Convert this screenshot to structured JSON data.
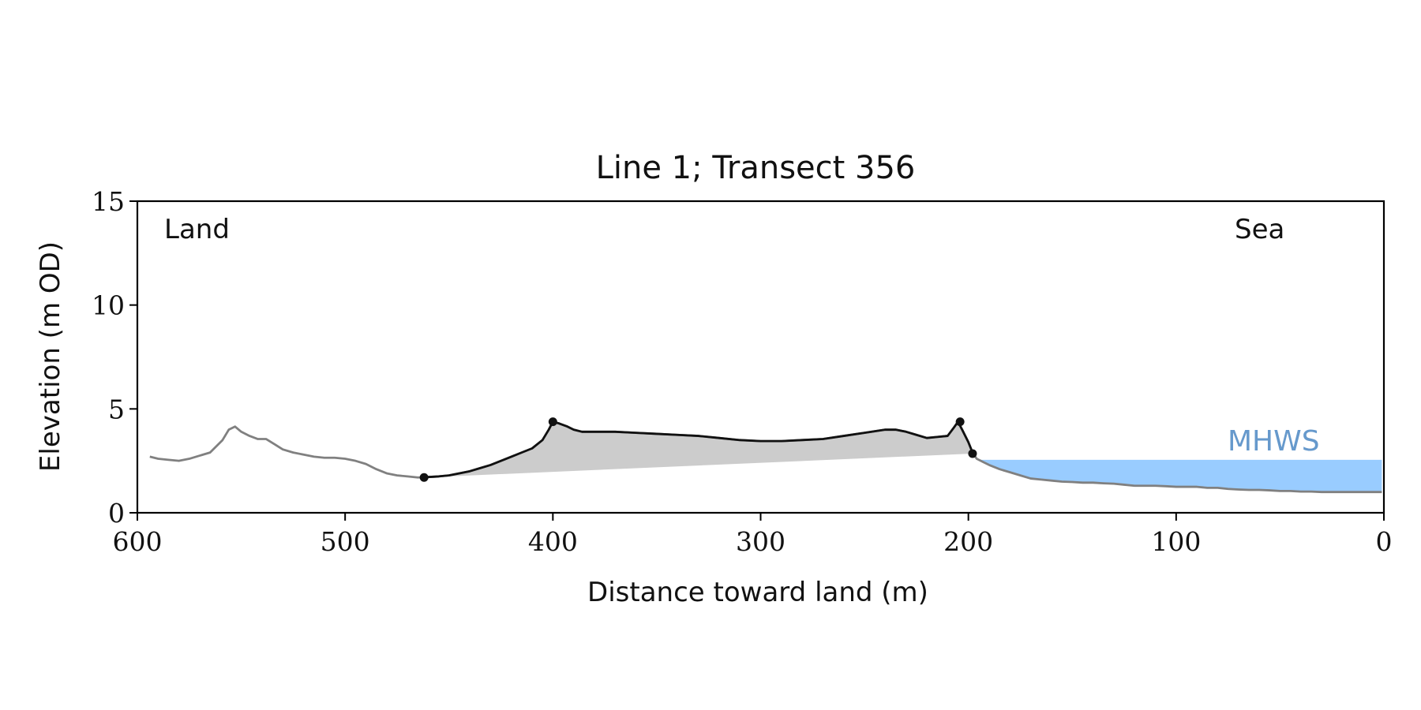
{
  "chart_data": {
    "type": "line",
    "title": "Line 1; Transect 356",
    "xlabel": "Distance toward land (m)",
    "ylabel": "Elevation (m OD)",
    "xlim": [
      600,
      0
    ],
    "ylim": [
      0,
      15
    ],
    "x_reversed": true,
    "xticks": [
      600,
      500,
      400,
      300,
      200,
      100,
      0
    ],
    "yticks": [
      0,
      5,
      10,
      15
    ],
    "grid": false,
    "annotations": {
      "left": "Land",
      "right": "Sea"
    },
    "colors": {
      "profile": "#808080",
      "dune": "#111111",
      "dune_fill": "#cccccc",
      "water": "#99ccff",
      "mhws_label": "#6699cc"
    },
    "mhws": {
      "label": "MHWS",
      "elevation": 2.55
    },
    "profile": {
      "x": [
        594,
        590,
        585,
        580,
        575,
        570,
        565,
        562,
        559,
        556,
        553,
        550,
        546,
        542,
        538,
        534,
        530,
        525,
        520,
        515,
        510,
        505,
        500,
        495,
        490,
        485,
        480,
        475,
        470,
        465,
        460,
        455,
        450,
        445,
        440,
        435,
        430,
        425,
        420,
        415,
        410,
        405,
        402,
        400,
        397,
        393,
        390,
        386,
        380,
        370,
        360,
        350,
        340,
        330,
        320,
        310,
        300,
        290,
        280,
        270,
        260,
        250,
        240,
        235,
        230,
        225,
        220,
        215,
        210,
        207,
        205,
        203,
        200,
        198,
        196,
        193,
        190,
        185,
        180,
        175,
        170,
        165,
        160,
        155,
        150,
        145,
        140,
        135,
        130,
        125,
        120,
        115,
        110,
        105,
        100,
        95,
        90,
        85,
        80,
        75,
        70,
        65,
        60,
        55,
        50,
        45,
        40,
        35,
        30,
        25,
        20,
        15,
        10,
        5,
        1
      ],
      "y": [
        2.7,
        2.6,
        2.55,
        2.5,
        2.6,
        2.75,
        2.9,
        3.2,
        3.5,
        4.0,
        4.15,
        3.9,
        3.7,
        3.55,
        3.55,
        3.3,
        3.05,
        2.9,
        2.8,
        2.7,
        2.65,
        2.65,
        2.6,
        2.5,
        2.35,
        2.1,
        1.9,
        1.8,
        1.75,
        1.7,
        1.72,
        1.75,
        1.8,
        1.9,
        2.0,
        2.15,
        2.3,
        2.5,
        2.7,
        2.9,
        3.1,
        3.5,
        4.0,
        4.38,
        4.3,
        4.15,
        4.0,
        3.9,
        3.9,
        3.9,
        3.85,
        3.8,
        3.75,
        3.7,
        3.6,
        3.5,
        3.45,
        3.45,
        3.5,
        3.55,
        3.7,
        3.85,
        4.0,
        4.0,
        3.9,
        3.75,
        3.6,
        3.65,
        3.7,
        4.1,
        4.38,
        4.0,
        3.4,
        2.9,
        2.6,
        2.45,
        2.3,
        2.1,
        1.95,
        1.8,
        1.65,
        1.6,
        1.55,
        1.5,
        1.48,
        1.45,
        1.45,
        1.42,
        1.4,
        1.35,
        1.3,
        1.3,
        1.3,
        1.28,
        1.25,
        1.25,
        1.25,
        1.2,
        1.2,
        1.15,
        1.12,
        1.1,
        1.1,
        1.08,
        1.05,
        1.05,
        1.02,
        1.02,
        1.0,
        1.0,
        1.0,
        1.0,
        1.0,
        1.0,
        1.0
      ]
    },
    "dune_segment": {
      "x_start": 462,
      "x_end": 198
    },
    "dune_toe_line": {
      "x": [
        462,
        198
      ],
      "y": [
        1.7,
        2.85
      ]
    },
    "key_points": {
      "x": [
        462,
        400,
        204,
        198
      ],
      "y": [
        1.7,
        4.38,
        4.38,
        2.85
      ]
    }
  }
}
